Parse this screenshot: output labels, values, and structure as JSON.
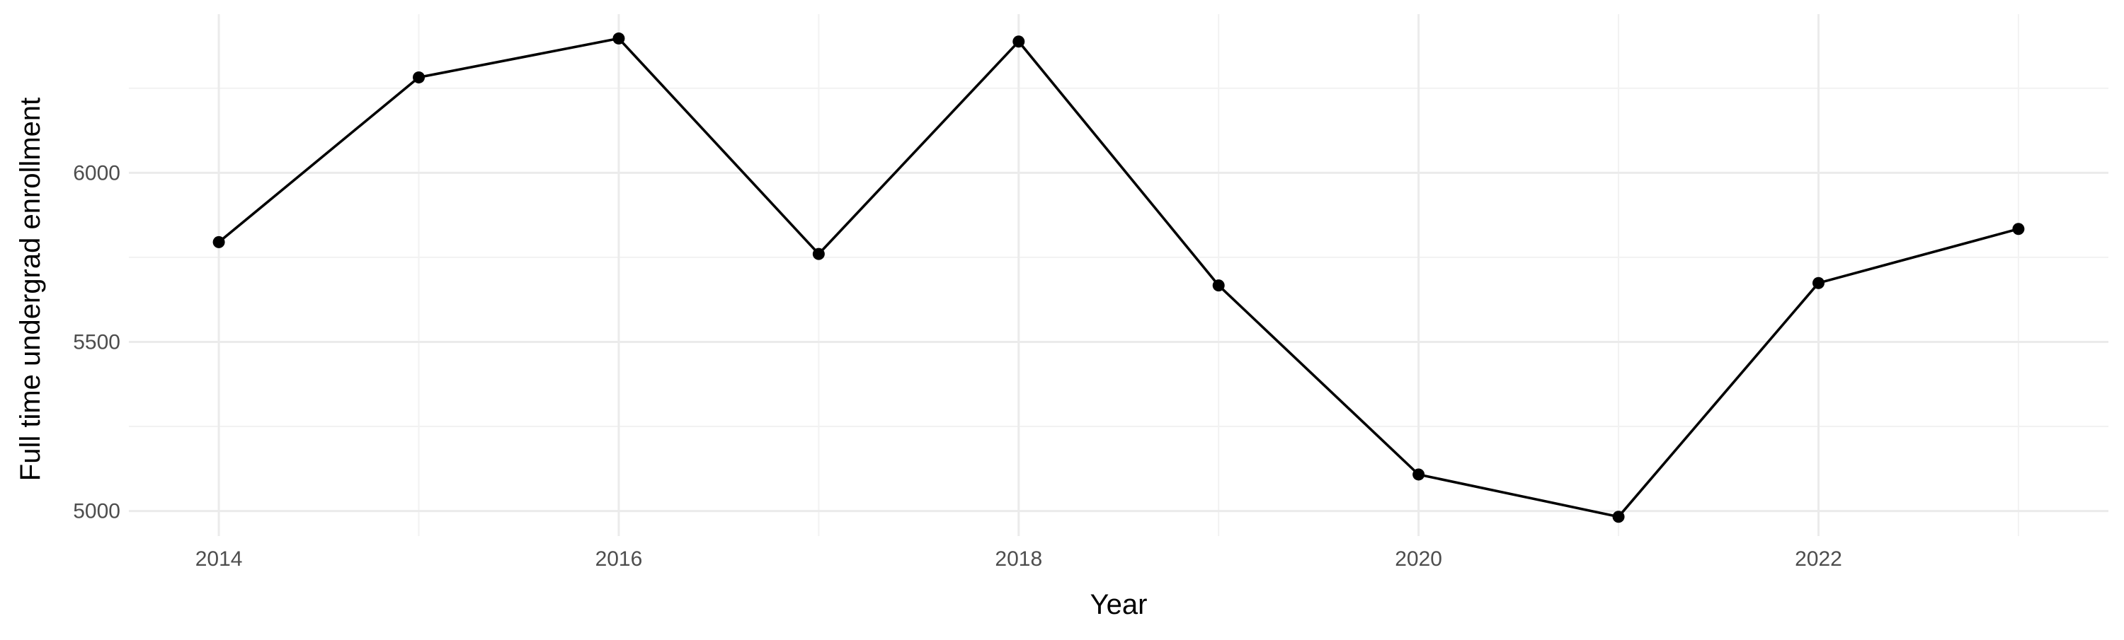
{
  "chart_data": {
    "type": "line",
    "title": "",
    "xlabel": "Year",
    "ylabel": "Full time undergrad enrollment",
    "x": [
      2014,
      2015,
      2016,
      2017,
      2018,
      2019,
      2020,
      2021,
      2022,
      2023
    ],
    "series": [
      {
        "values": [
          5795,
          6282,
          6397,
          5760,
          6388,
          5667,
          5108,
          4983,
          5674,
          5834
        ]
      }
    ],
    "xlim": [
      2013.55,
      2023.45
    ],
    "ylim": [
      4926,
      6469
    ],
    "x_ticks": [
      2014,
      2016,
      2018,
      2020,
      2022
    ],
    "x_tick_labels": [
      "2014",
      "2016",
      "2018",
      "2020",
      "2022"
    ],
    "y_ticks": [
      5000,
      5500,
      6000
    ],
    "y_tick_labels": [
      "5000",
      "5500",
      "6000"
    ],
    "grid": true,
    "legend": "none",
    "colors": {
      "line": "#000000",
      "point": "#000000",
      "grid_major": "#ebebeb",
      "grid_minor": "#f2f2f2",
      "tick_text": "#4d4d4d",
      "axis_title": "#000000"
    }
  }
}
